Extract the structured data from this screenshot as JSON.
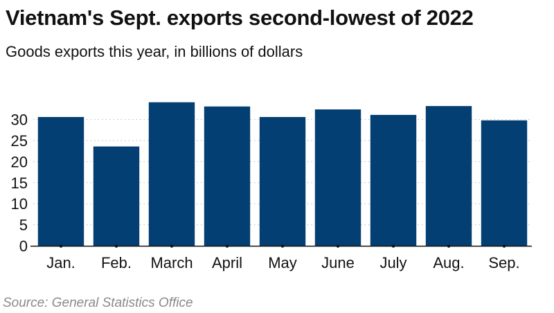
{
  "chart_data": {
    "type": "bar",
    "title": "Vietnam's Sept. exports second-lowest of 2022",
    "subtitle": "Goods exports this year, in billions of dollars",
    "categories": [
      "Jan.",
      "Feb.",
      "March",
      "April",
      "May",
      "June",
      "July",
      "Aug.",
      "Sep."
    ],
    "values": [
      30.6,
      23.6,
      34.1,
      33.1,
      30.6,
      32.4,
      31.1,
      33.2,
      29.8
    ],
    "xlabel": "",
    "ylabel": "",
    "ylim": [
      0,
      35
    ],
    "yticks": [
      0,
      5,
      10,
      15,
      20,
      25,
      30
    ],
    "grid": true,
    "bar_color": "#033f73",
    "source": "Source: General Statistics Office"
  }
}
